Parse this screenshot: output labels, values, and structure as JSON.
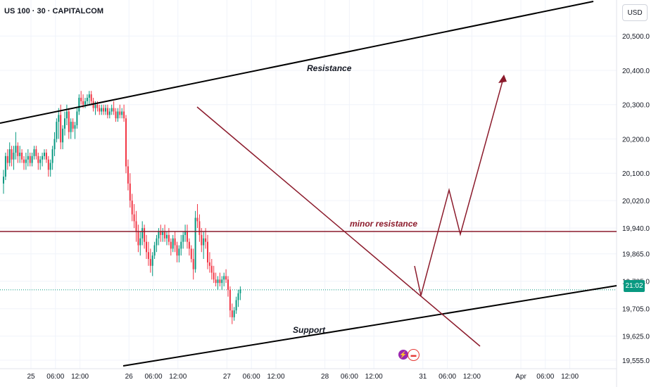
{
  "title": "US 100 · 30 · CAPITALCOM",
  "currency": "USD",
  "last_price_label": "21:02",
  "icons": [
    "lightning-icon",
    "us-flag-icon"
  ],
  "colors": {
    "up": "#089981",
    "down": "#f23645",
    "trendline": "#000000",
    "bear_line": "#8b1a2b"
  },
  "annotations": {
    "resistance": "Resistance",
    "support": "Support",
    "minor_resistance": "minor resistance"
  },
  "chart_data": {
    "type": "candlestick",
    "ylim": [
      19530,
      20560
    ],
    "y_ticks": [
      "20,500.0",
      "20,400.0",
      "20,300.0",
      "20,200.0",
      "20,100.0",
      "20,020.0",
      "19,940.0",
      "19,865.0",
      "19,785.0",
      "19,705.0",
      "19,625.0",
      "19,555.0"
    ],
    "y_tick_values": [
      20500,
      20400,
      20300,
      20200,
      20100,
      20020,
      19940,
      19865,
      19785,
      19705,
      19625,
      19555
    ],
    "x_ticks": [
      "25",
      "06:00",
      "12:00",
      "26",
      "06:00",
      "12:00",
      "27",
      "06:00",
      "12:00",
      "28",
      "06:00",
      "12:00",
      "31",
      "06:00",
      "12:00",
      "Apr",
      "06:00",
      "12:00"
    ],
    "x_tick_index": [
      0,
      12,
      24,
      48,
      60,
      72,
      96,
      108,
      120,
      144,
      156,
      168,
      192,
      204,
      216,
      240,
      252,
      264
    ],
    "candles": [
      [
        20070,
        20110,
        20040,
        20090
      ],
      [
        20090,
        20160,
        20080,
        20150
      ],
      [
        20150,
        20170,
        20110,
        20130
      ],
      [
        20130,
        20190,
        20120,
        20170
      ],
      [
        20170,
        20180,
        20120,
        20140
      ],
      [
        20140,
        20180,
        20110,
        20160
      ],
      [
        20160,
        20220,
        20140,
        20180
      ],
      [
        20180,
        20190,
        20130,
        20150
      ],
      [
        20150,
        20180,
        20130,
        20160
      ],
      [
        20160,
        20170,
        20130,
        20140
      ],
      [
        20140,
        20150,
        20110,
        20130
      ],
      [
        20130,
        20160,
        20110,
        20140
      ],
      [
        20140,
        20170,
        20120,
        20150
      ],
      [
        20150,
        20160,
        20120,
        20130
      ],
      [
        20130,
        20160,
        20120,
        20150
      ],
      [
        20150,
        20180,
        20140,
        20170
      ],
      [
        20170,
        20180,
        20140,
        20150
      ],
      [
        20150,
        20160,
        20110,
        20130
      ],
      [
        20130,
        20150,
        20110,
        20140
      ],
      [
        20140,
        20160,
        20120,
        20150
      ],
      [
        20150,
        20170,
        20140,
        20160
      ],
      [
        20160,
        20170,
        20130,
        20140
      ],
      [
        20140,
        20150,
        20090,
        20110
      ],
      [
        20110,
        20140,
        20090,
        20130
      ],
      [
        20130,
        20180,
        20110,
        20170
      ],
      [
        20170,
        20220,
        20150,
        20200
      ],
      [
        20200,
        20260,
        20190,
        20250
      ],
      [
        20250,
        20290,
        20200,
        20270
      ],
      [
        20270,
        20300,
        20170,
        20190
      ],
      [
        20190,
        20240,
        20170,
        20230
      ],
      [
        20230,
        20280,
        20210,
        20260
      ],
      [
        20260,
        20300,
        20240,
        20280
      ],
      [
        20280,
        20290,
        20200,
        20220
      ],
      [
        20220,
        20260,
        20200,
        20250
      ],
      [
        20250,
        20260,
        20220,
        20230
      ],
      [
        20230,
        20250,
        20200,
        20240
      ],
      [
        20240,
        20290,
        20230,
        20280
      ],
      [
        20280,
        20330,
        20270,
        20320
      ],
      [
        20320,
        20340,
        20300,
        20310
      ],
      [
        20310,
        20330,
        20290,
        20300
      ],
      [
        20300,
        20320,
        20290,
        20310
      ],
      [
        20310,
        20330,
        20300,
        20320
      ],
      [
        20320,
        20340,
        20300,
        20330
      ],
      [
        20330,
        20340,
        20300,
        20310
      ],
      [
        20310,
        20320,
        20280,
        20290
      ],
      [
        20290,
        20310,
        20270,
        20300
      ],
      [
        20300,
        20310,
        20280,
        20290
      ],
      [
        20290,
        20300,
        20270,
        20280
      ],
      [
        20280,
        20300,
        20270,
        20290
      ],
      [
        20290,
        20300,
        20270,
        20280
      ],
      [
        20280,
        20300,
        20270,
        20290
      ],
      [
        20290,
        20300,
        20260,
        20270
      ],
      [
        20270,
        20290,
        20260,
        20280
      ],
      [
        20280,
        20300,
        20270,
        20290
      ],
      [
        20290,
        20310,
        20270,
        20280
      ],
      [
        20280,
        20290,
        20250,
        20260
      ],
      [
        20260,
        20290,
        20250,
        20280
      ],
      [
        20280,
        20300,
        20260,
        20270
      ],
      [
        20270,
        20290,
        20260,
        20280
      ],
      [
        20280,
        20300,
        20250,
        20260
      ],
      [
        20260,
        20270,
        20100,
        20120
      ],
      [
        20120,
        20140,
        20050,
        20070
      ],
      [
        20070,
        20100,
        20000,
        20020
      ],
      [
        20020,
        20040,
        19960,
        19980
      ],
      [
        19980,
        20010,
        19940,
        19960
      ],
      [
        19960,
        19990,
        19900,
        19930
      ],
      [
        19930,
        19950,
        19870,
        19890
      ],
      [
        19890,
        19930,
        19860,
        19910
      ],
      [
        19910,
        19960,
        19890,
        19940
      ],
      [
        19940,
        19950,
        19880,
        19900
      ],
      [
        19900,
        19920,
        19850,
        19870
      ],
      [
        19870,
        19900,
        19830,
        19850
      ],
      [
        19850,
        19880,
        19810,
        19830
      ],
      [
        19830,
        19870,
        19800,
        19860
      ],
      [
        19860,
        19900,
        19850,
        19890
      ],
      [
        19890,
        19920,
        19870,
        19910
      ],
      [
        19910,
        19940,
        19890,
        19930
      ],
      [
        19930,
        19950,
        19900,
        19920
      ],
      [
        19920,
        19940,
        19900,
        19930
      ],
      [
        19930,
        19950,
        19900,
        19910
      ],
      [
        19910,
        19930,
        19890,
        19920
      ],
      [
        19920,
        19940,
        19890,
        19900
      ],
      [
        19900,
        19910,
        19860,
        19880
      ],
      [
        19880,
        19920,
        19870,
        19910
      ],
      [
        19910,
        19930,
        19870,
        19890
      ],
      [
        19890,
        19900,
        19840,
        19860
      ],
      [
        19860,
        19890,
        19840,
        19880
      ],
      [
        19880,
        19920,
        19860,
        19900
      ],
      [
        19900,
        19930,
        19880,
        19920
      ],
      [
        19920,
        19950,
        19900,
        19930
      ],
      [
        19930,
        19950,
        19880,
        19900
      ],
      [
        19900,
        19910,
        19860,
        19880
      ],
      [
        19880,
        19890,
        19840,
        19850
      ],
      [
        19850,
        19880,
        19790,
        19820
      ],
      [
        19820,
        19990,
        19810,
        19970
      ],
      [
        19970,
        20010,
        19940,
        19960
      ],
      [
        19960,
        19980,
        19900,
        19920
      ],
      [
        19920,
        19940,
        19870,
        19890
      ],
      [
        19890,
        19930,
        19850,
        19910
      ],
      [
        19910,
        19940,
        19880,
        19900
      ],
      [
        19900,
        19920,
        19820,
        19840
      ],
      [
        19840,
        19870,
        19810,
        19830
      ],
      [
        19830,
        19850,
        19790,
        19810
      ],
      [
        19810,
        19830,
        19780,
        19790
      ],
      [
        19790,
        19810,
        19770,
        19780
      ],
      [
        19780,
        19800,
        19760,
        19790
      ],
      [
        19790,
        19810,
        19770,
        19780
      ],
      [
        19780,
        19800,
        19760,
        19790
      ],
      [
        19790,
        19810,
        19770,
        19800
      ],
      [
        19800,
        19820,
        19780,
        19790
      ],
      [
        19790,
        19800,
        19740,
        19760
      ],
      [
        19760,
        19770,
        19680,
        19700
      ],
      [
        19700,
        19720,
        19660,
        19680
      ],
      [
        19680,
        19710,
        19670,
        19700
      ],
      [
        19700,
        19740,
        19690,
        19730
      ],
      [
        19730,
        19760,
        19710,
        19750
      ],
      [
        19750,
        19770,
        19730,
        19760
      ]
    ]
  }
}
